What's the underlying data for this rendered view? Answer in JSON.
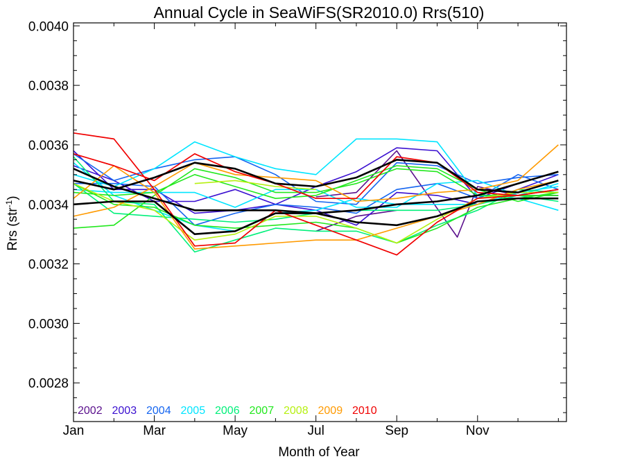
{
  "chart_data": {
    "type": "line",
    "title": "Annual Cycle in SeaWiFS(SR2010.0) Rrs(510)",
    "xlabel": "Month of Year",
    "ylabel_main": "Rrs (str",
    "ylabel_sup": "-1",
    "ylabel_end": ")",
    "xlim": [
      1,
      13.2
    ],
    "ylim": [
      0.00267,
      0.00401
    ],
    "x_ticks": [
      {
        "value": 1,
        "label": "Jan"
      },
      {
        "value": 3,
        "label": "Mar"
      },
      {
        "value": 5,
        "label": "May"
      },
      {
        "value": 7,
        "label": "Jul"
      },
      {
        "value": 9,
        "label": "Sep"
      },
      {
        "value": 11,
        "label": "Nov"
      }
    ],
    "y_ticks": [
      {
        "value": 0.0028,
        "label": "0.0028"
      },
      {
        "value": 0.003,
        "label": "0.0030"
      },
      {
        "value": 0.0032,
        "label": "0.0032"
      },
      {
        "value": 0.0034,
        "label": "0.0034"
      },
      {
        "value": 0.0036,
        "label": "0.0036"
      },
      {
        "value": 0.0038,
        "label": "0.0038"
      },
      {
        "value": 0.004,
        "label": "0.0040"
      }
    ],
    "grid": false,
    "legend_position": "bottom-left",
    "legend": [
      {
        "label": "2002",
        "color": "#5a0f8c"
      },
      {
        "label": "2003",
        "color": "#3a0fd0"
      },
      {
        "label": "2004",
        "color": "#1565f0"
      },
      {
        "label": "2005",
        "color": "#00e5ff"
      },
      {
        "label": "2006",
        "color": "#00f07a"
      },
      {
        "label": "2007",
        "color": "#22e81e"
      },
      {
        "label": "2008",
        "color": "#b6f010"
      },
      {
        "label": "2009",
        "color": "#ff9a00"
      },
      {
        "label": "2010",
        "color": "#f00000"
      }
    ],
    "series": [
      {
        "color": "#5a0f8c",
        "width": 1.6,
        "x": [
          7,
          8,
          9,
          10.5,
          11,
          12,
          13
        ],
        "y": [
          0.003425,
          0.00344,
          0.00358,
          0.00329,
          0.00346,
          0.00343,
          0.00343
        ]
      },
      {
        "color": "#5a0f8c",
        "width": 1.6,
        "x": [
          7,
          8,
          9
        ],
        "y": [
          0.00331,
          0.00336,
          0.00338
        ]
      },
      {
        "color": "#3a0fd0",
        "width": 1.6,
        "x": [
          1,
          2,
          3,
          4,
          5,
          6,
          7,
          8,
          9,
          10,
          11,
          12,
          13
        ],
        "y": [
          0.00353,
          0.00348,
          0.00341,
          0.00341,
          0.00345,
          0.0034,
          0.00346,
          0.00351,
          0.00359,
          0.00358,
          0.00342,
          0.00347,
          0.00351
        ]
      },
      {
        "color": "#3a0fd0",
        "width": 1.6,
        "x": [
          1,
          2,
          3,
          4,
          5,
          6,
          7,
          8,
          9,
          10,
          11,
          12,
          13
        ],
        "y": [
          0.00358,
          0.00345,
          0.00345,
          0.00337,
          0.00338,
          0.0034,
          0.00338,
          0.00333,
          0.00344,
          0.00343,
          0.0034,
          0.00345,
          0.0035
        ]
      },
      {
        "color": "#1565f0",
        "width": 1.6,
        "x": [
          1,
          2,
          3,
          4,
          5,
          6,
          7,
          8,
          9,
          10,
          11,
          12,
          13
        ],
        "y": [
          0.00357,
          0.00348,
          0.00352,
          0.00355,
          0.00356,
          0.0035,
          0.00341,
          0.0034,
          0.00354,
          0.00353,
          0.00347,
          0.00349,
          0.0035
        ]
      },
      {
        "color": "#1565f0",
        "width": 1.6,
        "x": [
          1,
          2,
          3,
          4,
          5,
          6,
          7,
          8,
          9,
          10,
          11,
          12,
          13
        ],
        "y": [
          0.00347,
          0.00347,
          0.00346,
          0.00333,
          0.00337,
          0.0034,
          0.00339,
          0.00337,
          0.00345,
          0.00347,
          0.00342,
          0.0035,
          0.00345
        ]
      },
      {
        "color": "#00e5ff",
        "width": 1.6,
        "x": [
          1,
          2,
          3,
          4,
          5,
          6,
          7,
          8,
          9,
          10,
          11,
          12,
          13
        ],
        "y": [
          0.0035,
          0.00346,
          0.00352,
          0.00361,
          0.00356,
          0.00352,
          0.0035,
          0.00362,
          0.00362,
          0.00361,
          0.00343,
          0.00342,
          0.00338
        ]
      },
      {
        "color": "#00e5ff",
        "width": 1.6,
        "x": [
          1,
          2,
          3,
          4,
          5,
          6,
          7,
          8,
          9,
          10,
          11,
          12,
          13
        ],
        "y": [
          0.00345,
          0.00344,
          0.00344,
          0.00344,
          0.00339,
          0.00345,
          0.00345,
          0.00339,
          0.00339,
          0.00347,
          0.00348,
          0.00343,
          0.00347
        ]
      },
      {
        "color": "#00e5ff",
        "width": 1.6,
        "x": [
          1,
          2,
          3,
          4,
          5,
          6,
          7,
          8,
          9,
          10,
          11,
          12,
          13
        ],
        "y": [
          0.00354,
          0.00343,
          0.00338,
          0.00333,
          0.00331,
          0.00337,
          0.00338,
          0.00342,
          0.0034,
          0.0034,
          0.0034,
          0.00344,
          0.00346
        ]
      },
      {
        "color": "#00f07a",
        "width": 1.6,
        "x": [
          1,
          2,
          3,
          4,
          5,
          6,
          7,
          8,
          9,
          10,
          11,
          12,
          13
        ],
        "y": [
          0.00356,
          0.00341,
          0.0034,
          0.00324,
          0.00328,
          0.00332,
          0.00331,
          0.00331,
          0.00327,
          0.00333,
          0.00338,
          0.00345,
          0.00344
        ]
      },
      {
        "color": "#00f07a",
        "width": 1.6,
        "x": [
          1,
          2,
          3,
          4,
          5,
          6,
          7,
          8,
          9,
          10,
          11,
          12,
          13
        ],
        "y": [
          0.00347,
          0.00337,
          0.00336,
          0.00335,
          0.00334,
          0.00335,
          0.00337,
          0.00338,
          0.00338,
          0.00338,
          0.0034,
          0.00343,
          0.00341
        ]
      },
      {
        "color": "#22e81e",
        "width": 1.6,
        "x": [
          1,
          2,
          3,
          4,
          5,
          6,
          7,
          8,
          9,
          10,
          11,
          12,
          13
        ],
        "y": [
          0.00332,
          0.00333,
          0.00343,
          0.00352,
          0.00349,
          0.00344,
          0.00344,
          0.00347,
          0.00352,
          0.00351,
          0.00343,
          0.00343,
          0.00343
        ]
      },
      {
        "color": "#22e81e",
        "width": 1.6,
        "x": [
          1,
          2,
          3,
          4,
          5,
          6,
          7,
          8,
          9,
          10,
          11,
          12,
          13
        ],
        "y": [
          0.00344,
          0.00343,
          0.00344,
          0.0035,
          0.00346,
          0.00342,
          0.00343,
          0.00348,
          0.00353,
          0.00352,
          0.00345,
          0.00341,
          0.00344
        ]
      },
      {
        "color": "#22e81e",
        "width": 1.6,
        "x": [
          1,
          2,
          3,
          4,
          5,
          6,
          7,
          8,
          9,
          10,
          11,
          12,
          13
        ],
        "y": [
          0.00347,
          0.0034,
          0.00339,
          0.00333,
          0.00332,
          0.00333,
          0.00334,
          0.00332,
          0.00327,
          0.00332,
          0.00339,
          0.00342,
          0.00344
        ]
      },
      {
        "color": "#b6f010",
        "width": 1.6,
        "x": [
          4,
          5,
          6,
          7
        ],
        "y": [
          0.00347,
          0.00348,
          0.00346,
          0.00345
        ]
      },
      {
        "color": "#b6f010",
        "width": 1.6,
        "x": [
          1,
          2,
          3,
          4,
          5,
          6,
          7,
          8,
          9,
          10,
          11,
          12,
          13
        ],
        "y": [
          0.00347,
          0.00341,
          0.00338,
          0.00328,
          0.0033,
          0.00336,
          0.00336,
          0.00332,
          0.00327,
          0.00335,
          0.00342,
          0.00344,
          0.00344
        ]
      },
      {
        "color": "#ff9a00",
        "width": 1.6,
        "x": [
          1,
          2,
          3,
          4,
          5,
          6,
          7,
          8,
          9,
          10,
          11,
          12,
          13
        ],
        "y": [
          0.00336,
          0.00339,
          0.00346,
          0.00354,
          0.0035,
          0.00349,
          0.00348,
          0.00341,
          0.00342,
          0.00344,
          0.00345,
          0.00348,
          0.0036
        ]
      },
      {
        "color": "#ff9a00",
        "width": 1.6,
        "x": [
          1,
          2,
          3,
          4,
          5,
          6,
          7,
          8,
          9,
          10,
          11,
          12,
          13
        ],
        "y": [
          0.00342,
          0.00353,
          0.00344,
          0.00325,
          0.00326,
          0.00327,
          0.00328,
          0.00328,
          0.00332,
          0.00336,
          0.0034,
          0.00345,
          0.00348
        ]
      },
      {
        "color": "#f00000",
        "width": 1.7,
        "x": [
          1,
          2,
          3,
          4,
          5,
          6,
          7,
          8,
          9,
          10,
          11,
          12,
          13
        ],
        "y": [
          0.00364,
          0.00362,
          0.00345,
          0.00326,
          0.00327,
          0.00338,
          0.00333,
          0.00328,
          0.00323,
          0.00334,
          0.00342,
          0.00343,
          0.00345
        ]
      },
      {
        "color": "#f00000",
        "width": 1.7,
        "x": [
          1,
          2,
          3,
          4,
          5,
          6,
          7,
          8,
          9,
          10,
          11,
          12,
          13
        ],
        "y": [
          0.00357,
          0.00353,
          0.00348,
          0.00357,
          0.00351,
          0.00347,
          0.00342,
          0.00342,
          0.00356,
          0.00354,
          0.00344,
          0.00343,
          0.00345
        ]
      },
      {
        "color": "#000000",
        "width": 2.6,
        "x": [
          1,
          2,
          3,
          4,
          5,
          6,
          7,
          8,
          9,
          10,
          11,
          12,
          13
        ],
        "y": [
          0.00348,
          0.00345,
          0.00349,
          0.00354,
          0.00352,
          0.00347,
          0.00346,
          0.00349,
          0.00355,
          0.00354,
          0.00345,
          0.00344,
          0.00348
        ]
      },
      {
        "color": "#000000",
        "width": 2.6,
        "x": [
          1,
          2,
          3,
          4,
          5,
          6,
          7,
          8,
          9,
          10,
          11,
          12,
          13
        ],
        "y": [
          0.00352,
          0.00346,
          0.00342,
          0.00338,
          0.00338,
          0.00338,
          0.00337,
          0.00338,
          0.0034,
          0.00341,
          0.00343,
          0.00347,
          0.00351
        ]
      },
      {
        "color": "#000000",
        "width": 2.6,
        "x": [
          1,
          2,
          3,
          4,
          5,
          6,
          7,
          8,
          9,
          10,
          11,
          12,
          13
        ],
        "y": [
          0.0034,
          0.00341,
          0.00341,
          0.0033,
          0.00331,
          0.00337,
          0.00337,
          0.00334,
          0.00333,
          0.00336,
          0.00341,
          0.00342,
          0.00342
        ]
      }
    ]
  }
}
